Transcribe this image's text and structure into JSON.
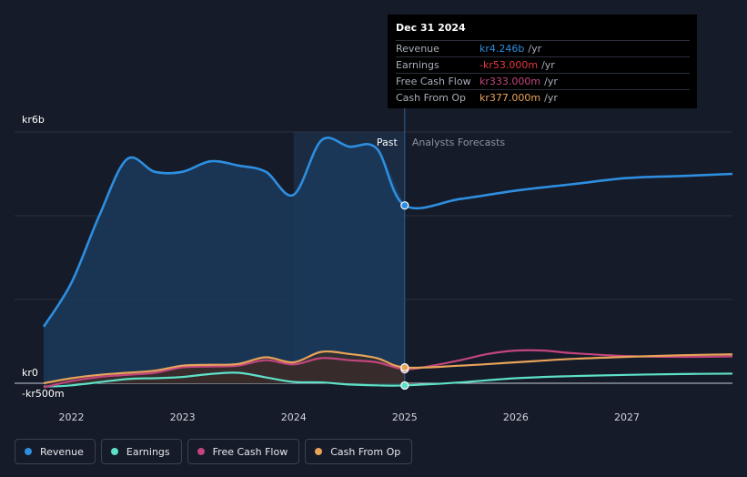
{
  "chart_data": {
    "type": "area",
    "title": "",
    "xlabel": "",
    "ylabel": "",
    "y_unit": "kr",
    "ylim": [
      -0.5,
      6.0
    ],
    "y_tick_labels": [
      {
        "value": 6.0,
        "label": "kr6b"
      },
      {
        "value": 0,
        "label": "kr0"
      },
      {
        "value": -0.5,
        "label": "-kr500m"
      }
    ],
    "y_gridlines": [
      6.0,
      4.0,
      2.0,
      0
    ],
    "xlim": [
      2021.75,
      2027.95
    ],
    "x_tick_labels": [
      "2022",
      "2023",
      "2024",
      "2025",
      "2026",
      "2027"
    ],
    "highlight_range": [
      2024.0,
      2025.0
    ],
    "divider_x": 2025.0,
    "region_labels": {
      "past": "Past",
      "forecast": "Analysts Forecasts"
    },
    "series": [
      {
        "name": "Revenue",
        "unit": "billions",
        "color": "#2e8ee0",
        "fill": "#1b3a5c",
        "points": [
          [
            2021.75,
            1.35
          ],
          [
            2022.0,
            2.4
          ],
          [
            2022.25,
            4.0
          ],
          [
            2022.5,
            5.35
          ],
          [
            2022.75,
            5.05
          ],
          [
            2023.0,
            5.05
          ],
          [
            2023.25,
            5.3
          ],
          [
            2023.5,
            5.2
          ],
          [
            2023.75,
            5.05
          ],
          [
            2024.0,
            4.5
          ],
          [
            2024.25,
            5.8
          ],
          [
            2024.5,
            5.65
          ],
          [
            2024.75,
            5.6
          ],
          [
            2025.0,
            4.246
          ],
          [
            2025.5,
            4.4
          ],
          [
            2026.0,
            4.6
          ],
          [
            2026.5,
            4.75
          ],
          [
            2027.0,
            4.9
          ],
          [
            2027.5,
            4.95
          ],
          [
            2027.95,
            5.0
          ]
        ]
      },
      {
        "name": "Earnings",
        "unit": "billions",
        "color": "#5ee0c8",
        "fill": "#14302f",
        "points": [
          [
            2021.75,
            -0.08
          ],
          [
            2022.0,
            -0.05
          ],
          [
            2022.5,
            0.1
          ],
          [
            2022.75,
            0.12
          ],
          [
            2023.0,
            0.15
          ],
          [
            2023.25,
            0.22
          ],
          [
            2023.5,
            0.25
          ],
          [
            2023.75,
            0.14
          ],
          [
            2024.0,
            0.03
          ],
          [
            2024.25,
            0.02
          ],
          [
            2024.5,
            -0.03
          ],
          [
            2024.75,
            -0.05
          ],
          [
            2025.0,
            -0.053
          ],
          [
            2025.5,
            0.02
          ],
          [
            2026.0,
            0.12
          ],
          [
            2026.5,
            0.17
          ],
          [
            2027.0,
            0.2
          ],
          [
            2027.5,
            0.22
          ],
          [
            2027.95,
            0.23
          ]
        ]
      },
      {
        "name": "Free Cash Flow",
        "unit": "billions",
        "color": "#c2457d",
        "fill": "#3a2038",
        "points": [
          [
            2021.75,
            -0.1
          ],
          [
            2022.0,
            0.05
          ],
          [
            2022.25,
            0.15
          ],
          [
            2022.5,
            0.2
          ],
          [
            2022.75,
            0.25
          ],
          [
            2023.0,
            0.38
          ],
          [
            2023.25,
            0.4
          ],
          [
            2023.5,
            0.42
          ],
          [
            2023.75,
            0.55
          ],
          [
            2024.0,
            0.45
          ],
          [
            2024.25,
            0.6
          ],
          [
            2024.5,
            0.55
          ],
          [
            2024.75,
            0.5
          ],
          [
            2025.0,
            0.333
          ],
          [
            2025.25,
            0.42
          ],
          [
            2025.5,
            0.55
          ],
          [
            2025.75,
            0.7
          ],
          [
            2026.0,
            0.78
          ],
          [
            2026.25,
            0.78
          ],
          [
            2026.5,
            0.72
          ],
          [
            2027.0,
            0.65
          ],
          [
            2027.5,
            0.63
          ],
          [
            2027.95,
            0.64
          ]
        ]
      },
      {
        "name": "Cash From Op",
        "unit": "billions",
        "color": "#e8a35a",
        "fill": "#3b2e24",
        "points": [
          [
            2021.75,
            0.0
          ],
          [
            2022.0,
            0.12
          ],
          [
            2022.25,
            0.2
          ],
          [
            2022.5,
            0.25
          ],
          [
            2022.75,
            0.3
          ],
          [
            2023.0,
            0.42
          ],
          [
            2023.25,
            0.44
          ],
          [
            2023.5,
            0.46
          ],
          [
            2023.75,
            0.62
          ],
          [
            2024.0,
            0.5
          ],
          [
            2024.25,
            0.75
          ],
          [
            2024.5,
            0.7
          ],
          [
            2024.75,
            0.6
          ],
          [
            2025.0,
            0.377
          ],
          [
            2025.5,
            0.42
          ],
          [
            2026.0,
            0.5
          ],
          [
            2026.5,
            0.58
          ],
          [
            2027.0,
            0.63
          ],
          [
            2027.5,
            0.67
          ],
          [
            2027.95,
            0.69
          ]
        ]
      }
    ],
    "marker_x": 2025.0
  },
  "tooltip": {
    "date": "Dec 31 2024",
    "rows": [
      {
        "label": "Revenue",
        "value": "kr4.246b",
        "unit": "/yr",
        "color": "#2e8ee0"
      },
      {
        "label": "Earnings",
        "value": "-kr53.000m",
        "unit": "/yr",
        "color": "#e0393e"
      },
      {
        "label": "Free Cash Flow",
        "value": "kr333.000m",
        "unit": "/yr",
        "color": "#c2457d"
      },
      {
        "label": "Cash From Op",
        "value": "kr377.000m",
        "unit": "/yr",
        "color": "#e8a35a"
      }
    ]
  },
  "legend": [
    {
      "label": "Revenue",
      "color": "#2e8ee0"
    },
    {
      "label": "Earnings",
      "color": "#5ee0c8"
    },
    {
      "label": "Free Cash Flow",
      "color": "#c2457d"
    },
    {
      "label": "Cash From Op",
      "color": "#e8a35a"
    }
  ]
}
